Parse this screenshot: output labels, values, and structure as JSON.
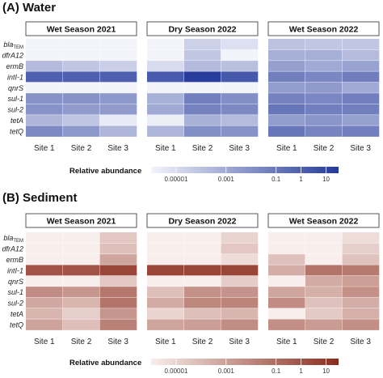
{
  "chart_data": [
    {
      "type": "heatmap",
      "panel_label": "(A) Water",
      "facets": [
        "Wet Season 2021",
        "Dry Season 2022",
        "Wet Season 2022"
      ],
      "sites": [
        "Site 1",
        "Site 2",
        "Site 3"
      ],
      "genes": [
        "bla_TEM",
        "dfrA12",
        "ermB",
        "intI-1",
        "qnrS",
        "sul-1",
        "sul-2",
        "tetA",
        "tetQ"
      ],
      "scale": "log",
      "legend_title": "Relative abundance",
      "legend_ticks": [
        "0.00001",
        "0.001",
        "0.1",
        "1",
        "10"
      ],
      "legend_domain_log10": [
        -6,
        1.5
      ],
      "color_low": "#f3f4fa",
      "color_high": "#243a9a",
      "log10_values": [
        [
          [
            -6,
            -6,
            -6
          ],
          [
            -6,
            -4.6,
            -5.2
          ],
          [
            -4,
            -4.2,
            -4.2
          ]
        ],
        [
          [
            -6,
            -6,
            -6
          ],
          [
            -6,
            -4.2,
            -6
          ],
          [
            -3.2,
            -3.2,
            -3.7
          ]
        ],
        [
          [
            -3.7,
            -4.2,
            -4.5
          ],
          [
            -5,
            -3.7,
            -3.9
          ],
          [
            -2.6,
            -3,
            -2.7
          ]
        ],
        [
          [
            0,
            0,
            0
          ],
          [
            0.2,
            1.4,
            0.3
          ],
          [
            -1.3,
            -1.6,
            -1.2
          ]
        ],
        [
          [
            -6,
            -6,
            -6
          ],
          [
            -6,
            -6,
            -6
          ],
          [
            -2.5,
            -2.4,
            -3
          ]
        ],
        [
          [
            -2.1,
            -2.1,
            -2.3
          ],
          [
            -3.3,
            -1.3,
            -1.9
          ],
          [
            -1.4,
            -1.6,
            -1.3
          ]
        ],
        [
          [
            -2.1,
            -2.4,
            -2.4
          ],
          [
            -3,
            -1.4,
            -1.7
          ],
          [
            -0.9,
            -1.3,
            -1.3
          ]
        ],
        [
          [
            -3.5,
            -4.1,
            -5.6
          ],
          [
            -5.8,
            -3.3,
            -3.7
          ],
          [
            -2.5,
            -2.2,
            -2.6
          ]
        ],
        [
          [
            -1.7,
            -2.3,
            -3.5
          ],
          [
            -3.5,
            -1.9,
            -2.1
          ],
          [
            -0.9,
            -1.5,
            -1.3
          ]
        ]
      ]
    },
    {
      "type": "heatmap",
      "panel_label": "(B) Sediment",
      "facets": [
        "Wet Season 2021",
        "Dry Season 2022",
        "Wet Season 2022"
      ],
      "sites": [
        "Site 1",
        "Site 2",
        "Site 3"
      ],
      "genes": [
        "bla_TEM",
        "dfrA12",
        "ermB",
        "intI-1",
        "qnrS",
        "sul-1",
        "sul-2",
        "tetA",
        "tetQ"
      ],
      "scale": "log",
      "legend_title": "Relative abundance",
      "legend_ticks": [
        "0.00001",
        "0.001",
        "0.1",
        "1",
        "10"
      ],
      "legend_domain_log10": [
        -6,
        1.5
      ],
      "color_low": "#f8eeec",
      "color_high": "#8a2c1c",
      "log10_values": [
        [
          [
            -6,
            -6,
            -4.5
          ],
          [
            -6,
            -6,
            -5
          ],
          [
            -6,
            -6,
            -5.3
          ]
        ],
        [
          [
            -6,
            -6,
            -4.2
          ],
          [
            -6,
            -6,
            -4.5
          ],
          [
            -6,
            -6,
            -4.8
          ]
        ],
        [
          [
            -6,
            -6,
            -3.2
          ],
          [
            -6,
            -6,
            -5.3
          ],
          [
            -4.3,
            -6,
            -4.3
          ]
        ],
        [
          [
            0,
            0,
            0.5
          ],
          [
            0.5,
            0.5,
            0.5
          ],
          [
            -3.5,
            -1.3,
            -1.5
          ]
        ],
        [
          [
            -6,
            -6,
            -4.5
          ],
          [
            -6,
            -6,
            -4.7
          ],
          [
            -6,
            -3.4,
            -2.9
          ]
        ],
        [
          [
            -2.2,
            -2.6,
            -1.4
          ],
          [
            -4.2,
            -2.4,
            -2.5
          ],
          [
            -3.2,
            -3.6,
            -2.4
          ]
        ],
        [
          [
            -3.3,
            -3.8,
            -1.3
          ],
          [
            -3.4,
            -2,
            -1.9
          ],
          [
            -2.2,
            -4.3,
            -3.5
          ]
        ],
        [
          [
            -3.8,
            -4.8,
            -2.6
          ],
          [
            -5,
            -4.2,
            -3.8
          ],
          [
            -6,
            -4.6,
            -3.6
          ]
        ],
        [
          [
            -3.1,
            -4.2,
            -1.8
          ],
          [
            -3.2,
            -2.9,
            -2.2
          ],
          [
            -2.3,
            -2.8,
            -2.3
          ]
        ]
      ]
    }
  ]
}
